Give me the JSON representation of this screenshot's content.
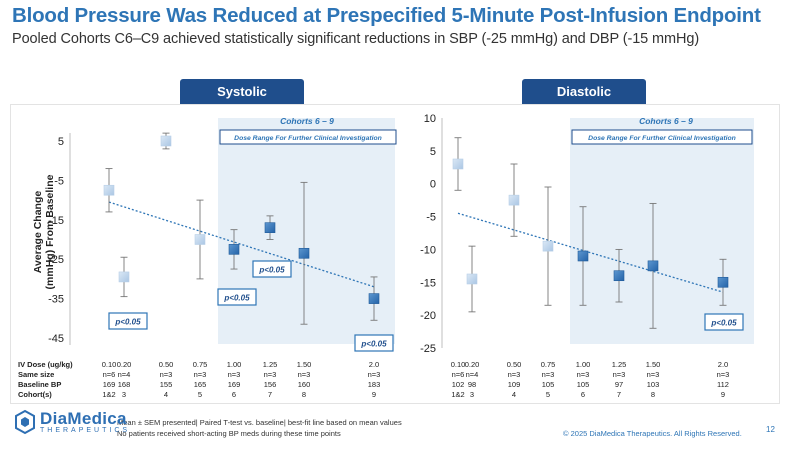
{
  "header": {
    "title": "Blood Pressure Was Reduced at Prespecified 5-Minute Post-Infusion Endpoint",
    "subtitle": "Pooled Cohorts C6–C9 achieved statistically significant reductions in SBP (-25 mmHg) and DBP (-15 mmHg)"
  },
  "colors": {
    "title": "#2e75b6",
    "tab": "#1f4e8c",
    "dark_marker": "#2e75b6",
    "light_marker": "#c5d9ee",
    "band": "#e6eff7"
  },
  "chart_data": [
    {
      "type": "scatter",
      "panel_label": "Systolic",
      "ylabel": "Average Change (mmHg) From Baseline",
      "ylim": [
        -45,
        8
      ],
      "yticks": [
        5,
        -5,
        -15,
        -25,
        -35,
        -45
      ],
      "cohort_label": "Cohorts 6 – 9",
      "dose_range_label": "Dose Range For Further Clinical Investigation",
      "x": [
        0.1,
        0.2,
        0.5,
        0.75,
        1.0,
        1.25,
        1.5,
        2.0
      ],
      "mean": [
        -7.5,
        -29.5,
        5,
        -20,
        -22.5,
        -17,
        -23.5,
        -35
      ],
      "err": [
        5.5,
        5,
        2,
        10,
        5,
        3,
        18,
        5.5
      ],
      "highlight": [
        false,
        false,
        false,
        false,
        true,
        true,
        true,
        true
      ],
      "trendline": {
        "start": [
          0.1,
          -10.5
        ],
        "end": [
          2.0,
          -32
        ]
      },
      "annotations": [
        "p<0.05",
        "p<0.05",
        "p<0.05",
        "p<0.05"
      ],
      "table": {
        "rows": [
          {
            "label": "IV Dose (ug/kg)",
            "values": [
              "0.10",
              "0.20",
              "0.50",
              "0.75",
              "1.00",
              "1.25",
              "1.50",
              "2.0"
            ]
          },
          {
            "label": "Same size",
            "values": [
              "n=6",
              "n=4",
              "n=3",
              "n=3",
              "n=3",
              "n=3",
              "n=3",
              "n=3"
            ]
          },
          {
            "label": "Baseline BP",
            "values": [
              "169",
              "168",
              "155",
              "165",
              "169",
              "156",
              "160",
              "183"
            ]
          },
          {
            "label": "Cohort(s)",
            "values": [
              "1&2",
              "3",
              "4",
              "5",
              "6",
              "7",
              "8",
              "9"
            ]
          }
        ]
      }
    },
    {
      "type": "scatter",
      "panel_label": "Diastolic",
      "ylim": [
        -25,
        10
      ],
      "yticks": [
        10,
        5,
        0,
        -5,
        -10,
        -15,
        -20,
        -25
      ],
      "cohort_label": "Cohorts 6 – 9",
      "dose_range_label": "Dose Range For Further Clinical Investigation",
      "x": [
        0.1,
        0.2,
        0.5,
        0.75,
        1.0,
        1.25,
        1.5,
        2.0
      ],
      "mean": [
        3,
        -14.5,
        -2.5,
        -9.5,
        -11,
        -14,
        -12.5,
        -15
      ],
      "err": [
        4,
        5,
        5.5,
        9,
        7.5,
        4,
        9.5,
        3.5
      ],
      "highlight": [
        false,
        false,
        false,
        false,
        true,
        true,
        true,
        true
      ],
      "trendline": {
        "start": [
          0.1,
          -4.5
        ],
        "end": [
          2.0,
          -16.5
        ]
      },
      "annotations": [
        "p<0.05"
      ],
      "table": {
        "rows": [
          {
            "label": "",
            "values": [
              "0.10",
              "0.20",
              "0.50",
              "0.75",
              "1.00",
              "1.25",
              "1.50",
              "2.0"
            ]
          },
          {
            "label": "",
            "values": [
              "n=6",
              "n=4",
              "n=3",
              "n=3",
              "n=3",
              "n=3",
              "n=3",
              "n=3"
            ]
          },
          {
            "label": "",
            "values": [
              "102",
              "98",
              "109",
              "105",
              "105",
              "97",
              "103",
              "112"
            ]
          },
          {
            "label": "",
            "values": [
              "1&2",
              "3",
              "4",
              "5",
              "6",
              "7",
              "8",
              "9"
            ]
          }
        ]
      }
    }
  ],
  "footer": {
    "notes": [
      "Mean ± SEM presented| Paired T-test vs. baseline| best-fit line based on mean values",
      "No patients received short-acting BP meds during these time points"
    ],
    "logo_name": "DiaMedica",
    "logo_sub": "THERAPEUTICS",
    "copyright": "© 2025 DiaMedica Therapeutics. All Rights Reserved.",
    "page": "12"
  }
}
